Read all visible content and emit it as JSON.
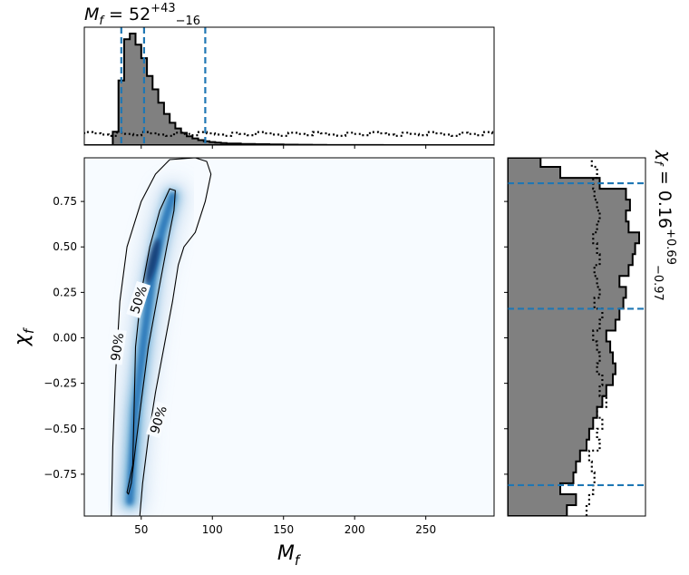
{
  "chart_data": {
    "type": "corner-posterior",
    "parameters": [
      "M_f",
      "chi_f"
    ],
    "top_panel": {
      "type": "histogram",
      "title": {
        "base": "M",
        "sub": "f",
        "eq": " = 52",
        "sup": "+43",
        "lo": "−16"
      },
      "median": 52,
      "interval_90": [
        36,
        95
      ],
      "bin_edges": [
        0,
        10,
        20,
        30,
        34,
        38,
        42,
        46,
        50,
        54,
        58,
        62,
        66,
        70,
        74,
        78,
        82,
        86,
        90,
        94,
        98,
        102,
        106,
        110,
        120,
        130,
        140,
        150,
        160,
        170,
        180,
        200,
        220,
        240,
        260,
        280,
        298
      ],
      "posterior_density": [
        0,
        0,
        0,
        0.12,
        0.58,
        0.95,
        1.0,
        0.9,
        0.78,
        0.62,
        0.5,
        0.38,
        0.28,
        0.2,
        0.15,
        0.11,
        0.08,
        0.06,
        0.045,
        0.035,
        0.028,
        0.022,
        0.018,
        0.014,
        0.01,
        0.008,
        0.006,
        0.004,
        0.003,
        0.002,
        0.001,
        0.001,
        0,
        0,
        0,
        0
      ],
      "prior_level": 0.1,
      "xlim": [
        10,
        298
      ]
    },
    "main_panel": {
      "type": "2d-density",
      "xlabel": {
        "base": "M",
        "sub": "f"
      },
      "ylabel": {
        "base": "χ",
        "sub": "f"
      },
      "xlim": [
        10,
        298
      ],
      "ylim": [
        -0.98,
        0.99
      ],
      "xticks": [
        50,
        100,
        150,
        200,
        250
      ],
      "yticks": [
        -0.75,
        -0.5,
        -0.25,
        0.0,
        0.25,
        0.5,
        0.75
      ],
      "ytick_labels": [
        "−0.75",
        "−0.50",
        "−0.25",
        "0.00",
        "0.25",
        "0.50",
        "0.75"
      ],
      "contour_labels": [
        "50%",
        "90%",
        "90%"
      ],
      "contour_50": [
        [
          40,
          -0.85
        ],
        [
          44,
          -0.7
        ],
        [
          45,
          -0.4
        ],
        [
          46,
          -0.05
        ],
        [
          50,
          0.25
        ],
        [
          56,
          0.5
        ],
        [
          63,
          0.7
        ],
        [
          70,
          0.82
        ],
        [
          74,
          0.81
        ],
        [
          73,
          0.7
        ],
        [
          68,
          0.5
        ],
        [
          62,
          0.25
        ],
        [
          55,
          -0.05
        ],
        [
          50,
          -0.35
        ],
        [
          46,
          -0.6
        ],
        [
          43,
          -0.8
        ],
        [
          41,
          -0.86
        ]
      ],
      "contour_90": [
        [
          29,
          -0.98
        ],
        [
          30,
          -0.6
        ],
        [
          32,
          -0.2
        ],
        [
          35,
          0.2
        ],
        [
          40,
          0.5
        ],
        [
          50,
          0.75
        ],
        [
          60,
          0.9
        ],
        [
          70,
          0.98
        ],
        [
          88,
          0.99
        ],
        [
          96,
          0.97
        ],
        [
          99,
          0.9
        ],
        [
          95,
          0.75
        ],
        [
          88,
          0.58
        ],
        [
          80,
          0.5
        ],
        [
          76,
          0.4
        ],
        [
          72,
          0.2
        ],
        [
          66,
          -0.05
        ],
        [
          60,
          -0.3
        ],
        [
          55,
          -0.55
        ],
        [
          51,
          -0.8
        ],
        [
          49,
          -0.98
        ]
      ],
      "density_ridge": [
        [
          42,
          -0.9
        ],
        [
          46,
          -0.4
        ],
        [
          52,
          0.0
        ],
        [
          58,
          0.35
        ],
        [
          65,
          0.6
        ],
        [
          72,
          0.78
        ]
      ]
    },
    "right_panel": {
      "type": "histogram",
      "title": {
        "base": "χ",
        "sub": "f",
        "eq": " = 0.16",
        "sup": "+0.69",
        "lo": "−0.97"
      },
      "median": 0.16,
      "interval_90": [
        -0.81,
        0.85
      ],
      "bins": [
        [
          -0.98,
          -0.92,
          0.45
        ],
        [
          -0.92,
          -0.86,
          0.52
        ],
        [
          -0.86,
          -0.8,
          0.4
        ],
        [
          -0.8,
          -0.74,
          0.5
        ],
        [
          -0.74,
          -0.68,
          0.52
        ],
        [
          -0.68,
          -0.62,
          0.55
        ],
        [
          -0.62,
          -0.56,
          0.6
        ],
        [
          -0.56,
          -0.5,
          0.62
        ],
        [
          -0.5,
          -0.44,
          0.65
        ],
        [
          -0.44,
          -0.38,
          0.68
        ],
        [
          -0.38,
          -0.32,
          0.72
        ],
        [
          -0.32,
          -0.26,
          0.75
        ],
        [
          -0.26,
          -0.2,
          0.8
        ],
        [
          -0.2,
          -0.14,
          0.82
        ],
        [
          -0.14,
          -0.08,
          0.8
        ],
        [
          -0.08,
          -0.02,
          0.78
        ],
        [
          -0.02,
          0.04,
          0.75
        ],
        [
          0.04,
          0.1,
          0.82
        ],
        [
          0.1,
          0.16,
          0.85
        ],
        [
          0.16,
          0.22,
          0.88
        ],
        [
          0.22,
          0.28,
          0.9
        ],
        [
          0.28,
          0.34,
          0.85
        ],
        [
          0.34,
          0.4,
          0.92
        ],
        [
          0.4,
          0.46,
          0.95
        ],
        [
          0.46,
          0.52,
          0.97
        ],
        [
          0.52,
          0.58,
          1.0
        ],
        [
          0.58,
          0.64,
          0.92
        ],
        [
          0.64,
          0.7,
          0.9
        ],
        [
          0.7,
          0.76,
          0.93
        ],
        [
          0.76,
          0.82,
          0.9
        ],
        [
          0.82,
          0.88,
          0.7
        ],
        [
          0.88,
          0.94,
          0.4
        ],
        [
          0.94,
          0.99,
          0.25
        ]
      ],
      "prior_levels": [
        0.6,
        0.62,
        0.65,
        0.66,
        0.64,
        0.62,
        0.7,
        0.68,
        0.72,
        0.68,
        0.75,
        0.7,
        0.72,
        0.68,
        0.7,
        0.68,
        0.65,
        0.7,
        0.72,
        0.66,
        0.7,
        0.68,
        0.66,
        0.7,
        0.68,
        0.65,
        0.68,
        0.7,
        0.68,
        0.66,
        0.65,
        0.68,
        0.64
      ]
    },
    "colors": {
      "histogram_fill": "#808080",
      "edge": "#000000",
      "interval_lines": "#1f77b4",
      "density_high": "#08306b",
      "density_low": "#f7fbff"
    }
  }
}
